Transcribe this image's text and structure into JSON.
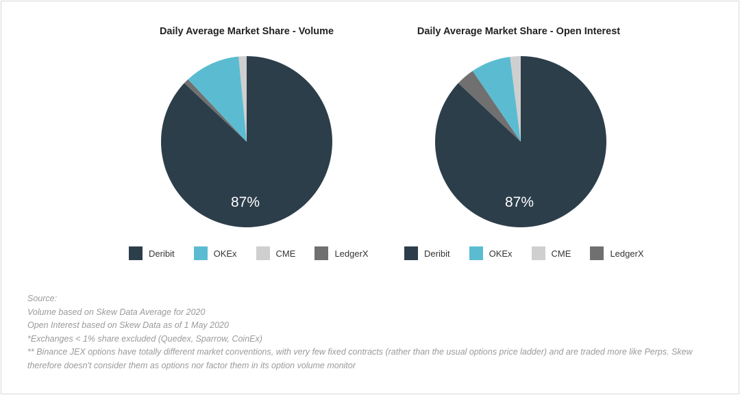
{
  "colors": {
    "Deribit": "#2d3e4b",
    "OKEx": "#5bbcd1",
    "CME": "#cfcfcf",
    "LedgerX": "#707070"
  },
  "chart_data": [
    {
      "type": "pie",
      "title": "Daily Average Market Share - Volume",
      "categories": [
        "Deribit",
        "LedgerX",
        "OKEx",
        "CME"
      ],
      "values": [
        87,
        1,
        10.5,
        1.5
      ],
      "data_label": "87%",
      "legend": [
        "Deribit",
        "OKEx",
        "CME",
        "LedgerX"
      ],
      "legend_position": "bottom"
    },
    {
      "type": "pie",
      "title": "Daily Average Market Share - Open Interest",
      "categories": [
        "Deribit",
        "LedgerX",
        "OKEx",
        "CME"
      ],
      "values": [
        87,
        3.5,
        7.5,
        2
      ],
      "data_label": "87%",
      "legend": [
        "Deribit",
        "OKEx",
        "CME",
        "LedgerX"
      ],
      "legend_position": "bottom"
    }
  ],
  "notes": [
    "Source:",
    "Volume based on Skew Data Average for 2020",
    "Open Interest based on Skew Data as of 1 May 2020",
    "*Exchanges < 1% share excluded (Quedex, Sparrow, CoinEx)",
    "** Binance JEX options have totally different market conventions, with very few fixed contracts (rather than the usual options price ladder) and are traded more like Perps. Skew therefore doesn't consider them as options nor factor them in its option volume monitor"
  ]
}
